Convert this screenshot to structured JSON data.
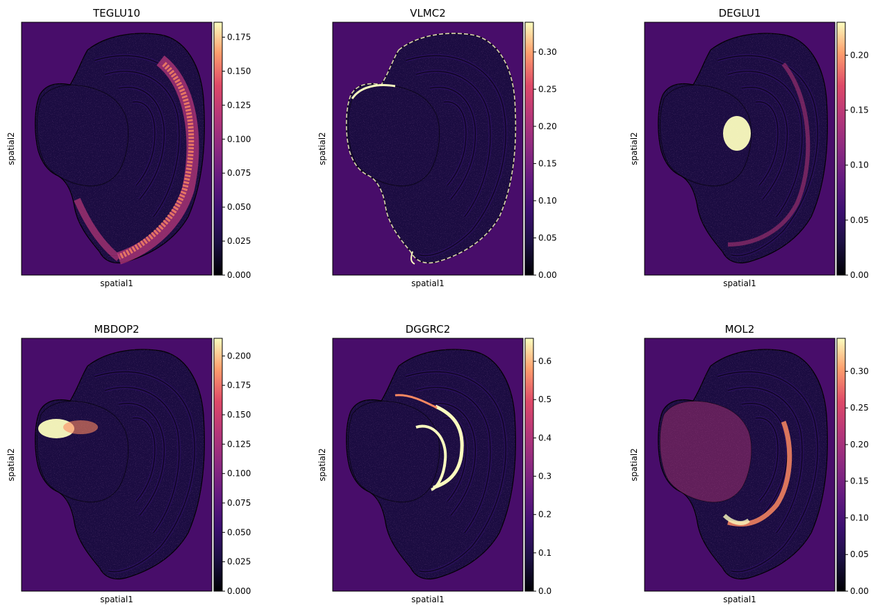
{
  "figure": {
    "colormap": "magma",
    "background_color": "#480d6a",
    "tissue_dark_color": "#1b0c41"
  },
  "chart_data": [
    {
      "type": "heatmap",
      "title": "TEGLU10",
      "xlabel": "spatial1",
      "ylabel": "spatial2",
      "colorbar": {
        "min": 0.0,
        "max": 0.186,
        "ticks": [
          "0.000",
          "0.025",
          "0.050",
          "0.075",
          "0.100",
          "0.125",
          "0.150",
          "0.175"
        ],
        "tick_values": [
          0,
          0.025,
          0.05,
          0.075,
          0.1,
          0.125,
          0.15,
          0.175
        ]
      },
      "hotspot": "outer cortical arc (layer band), bright in lower-right arc"
    },
    {
      "type": "heatmap",
      "title": "VLMC2",
      "xlabel": "spatial1",
      "ylabel": "spatial2",
      "colorbar": {
        "min": 0.0,
        "max": 0.34,
        "ticks": [
          "0.00",
          "0.05",
          "0.10",
          "0.15",
          "0.20",
          "0.25",
          "0.30"
        ],
        "tick_values": [
          0,
          0.05,
          0.1,
          0.15,
          0.2,
          0.25,
          0.3
        ]
      },
      "hotspot": "tissue outline (meninges) and inner border"
    },
    {
      "type": "heatmap",
      "title": "DEGLU1",
      "xlabel": "spatial1",
      "ylabel": "spatial2",
      "colorbar": {
        "min": 0.0,
        "max": 0.23,
        "ticks": [
          "0.00",
          "0.05",
          "0.10",
          "0.15",
          "0.20"
        ],
        "tick_values": [
          0,
          0.05,
          0.1,
          0.15,
          0.2
        ]
      },
      "hotspot": "compact nucleus near center-left"
    },
    {
      "type": "heatmap",
      "title": "MBDOP2",
      "xlabel": "spatial1",
      "ylabel": "spatial2",
      "colorbar": {
        "min": 0.0,
        "max": 0.215,
        "ticks": [
          "0.000",
          "0.025",
          "0.050",
          "0.075",
          "0.100",
          "0.125",
          "0.150",
          "0.175",
          "0.200"
        ],
        "tick_values": [
          0,
          0.025,
          0.05,
          0.075,
          0.1,
          0.125,
          0.15,
          0.175,
          0.2
        ]
      },
      "hotspot": "patch at left edge of thalamic lobe"
    },
    {
      "type": "heatmap",
      "title": "DGGRC2",
      "xlabel": "spatial1",
      "ylabel": "spatial2",
      "colorbar": {
        "min": 0.0,
        "max": 0.66,
        "ticks": [
          "0.0",
          "0.1",
          "0.2",
          "0.3",
          "0.4",
          "0.5",
          "0.6"
        ],
        "tick_values": [
          0,
          0.1,
          0.2,
          0.3,
          0.4,
          0.5,
          0.6
        ]
      },
      "hotspot": "dentate gyrus curved band"
    },
    {
      "type": "heatmap",
      "title": "MOL2",
      "xlabel": "spatial1",
      "ylabel": "spatial2",
      "colorbar": {
        "min": 0.0,
        "max": 0.345,
        "ticks": [
          "0.00",
          "0.05",
          "0.10",
          "0.15",
          "0.20",
          "0.25",
          "0.30"
        ],
        "tick_values": [
          0,
          0.05,
          0.1,
          0.15,
          0.2,
          0.25,
          0.3
        ]
      },
      "hotspot": "white matter tract arc and left lobe"
    }
  ]
}
